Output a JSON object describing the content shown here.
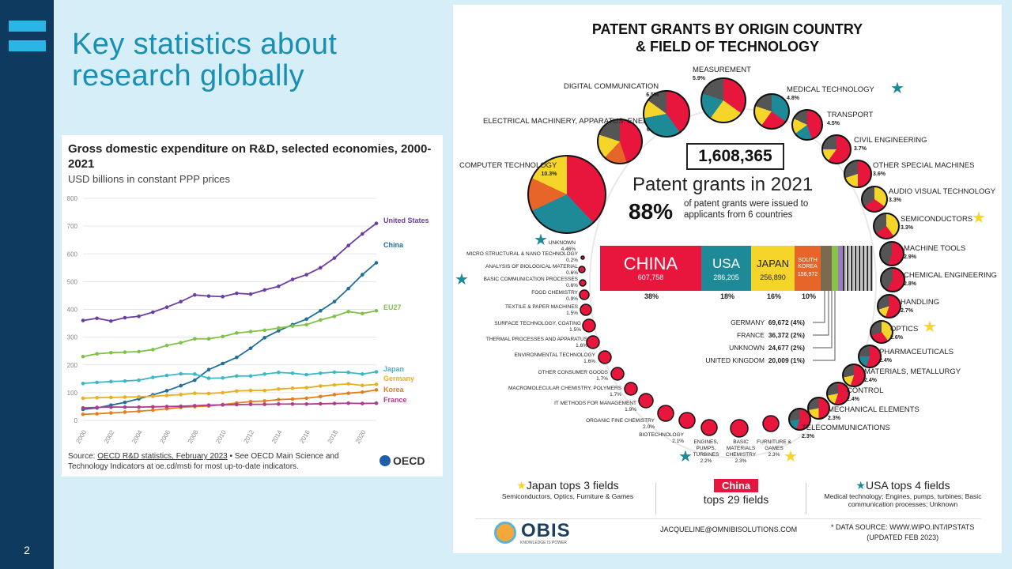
{
  "slide": {
    "title": "Key statistics about research globally",
    "page_number": "2"
  },
  "colors": {
    "sidebar": "#0e3a5f",
    "accent": "#29b6e6",
    "title": "#1a8fb2",
    "background": "#d6eef7"
  },
  "chart": {
    "title": "Gross domestic expenditure on R&D, selected economies, 2000-2021",
    "subtitle": "USD billions in constant PPP prices",
    "source_prefix": "Source: ",
    "source_link": "OECD R&D statistics, February 2023",
    "source_suffix": " • See OECD Main Science and Technology Indicators at oe.cd/msti for most up-to-date indicators.",
    "logo_text": "OECD"
  },
  "chart_data": {
    "type": "line",
    "title": "Gross domestic expenditure on R&D, selected economies, 2000-2021",
    "subtitle": "USD billions in constant PPP prices",
    "xlabel": "",
    "ylabel": "",
    "ylim": [
      0,
      800
    ],
    "yticks": [
      0,
      100,
      200,
      300,
      400,
      500,
      600,
      700,
      800
    ],
    "xticks": [
      "2000",
      "2002",
      "2004",
      "2006",
      "2008",
      "2010",
      "2012",
      "2014",
      "2016",
      "2018",
      "2020"
    ],
    "x": [
      2000,
      2001,
      2002,
      2003,
      2004,
      2005,
      2006,
      2007,
      2008,
      2009,
      2010,
      2011,
      2012,
      2013,
      2014,
      2015,
      2016,
      2017,
      2018,
      2019,
      2020,
      2021
    ],
    "grid": true,
    "series": [
      {
        "name": "United States",
        "color": "#6b3fa0",
        "values": [
          360,
          368,
          358,
          370,
          375,
          390,
          408,
          428,
          452,
          448,
          446,
          458,
          455,
          470,
          483,
          508,
          525,
          550,
          585,
          630,
          672,
          710
        ]
      },
      {
        "name": "China",
        "color": "#1e6f9a",
        "values": [
          40,
          45,
          55,
          65,
          78,
          92,
          107,
          125,
          145,
          183,
          205,
          227,
          260,
          298,
          323,
          345,
          365,
          395,
          428,
          475,
          525,
          568
        ]
      },
      {
        "name": "EU27",
        "color": "#7fc24a",
        "values": [
          230,
          240,
          244,
          246,
          248,
          255,
          270,
          280,
          294,
          294,
          302,
          315,
          320,
          325,
          333,
          340,
          345,
          362,
          375,
          392,
          385,
          395
        ]
      },
      {
        "name": "Japan",
        "color": "#3bb8c6",
        "values": [
          133,
          137,
          140,
          142,
          145,
          155,
          162,
          168,
          167,
          152,
          153,
          160,
          160,
          167,
          173,
          170,
          165,
          170,
          174,
          173,
          167,
          175
        ]
      },
      {
        "name": "Germany",
        "color": "#e8b020",
        "values": [
          80,
          82,
          83,
          84,
          85,
          87,
          90,
          93,
          98,
          97,
          100,
          106,
          108,
          108,
          113,
          116,
          118,
          124,
          128,
          132,
          126,
          130
        ]
      },
      {
        "name": "Korea",
        "color": "#e27f1e",
        "values": [
          22,
          24,
          27,
          30,
          33,
          37,
          42,
          47,
          50,
          52,
          57,
          63,
          68,
          70,
          75,
          77,
          80,
          86,
          93,
          98,
          102,
          110
        ]
      },
      {
        "name": "France",
        "color": "#b03a8f",
        "values": [
          45,
          47,
          48,
          48,
          48,
          49,
          50,
          51,
          53,
          55,
          56,
          57,
          58,
          58,
          59,
          59,
          59,
          60,
          61,
          62,
          61,
          62
        ]
      }
    ]
  },
  "infographic": {
    "title_line1": "PATENT GRANTS BY ORIGIN COUNTRY",
    "title_line2": "& FIELD OF TECHNOLOGY",
    "total": "1,608,365",
    "headline": "Patent grants in 2021",
    "pct": "88%",
    "pct_desc": "of patent grants were issued to applicants from 6 countries",
    "bar": [
      {
        "name": "CHINA",
        "value": "607,758",
        "pct": "38%",
        "color": "#e8163c",
        "share": 38
      },
      {
        "name": "USA",
        "value": "286,205",
        "pct": "18%",
        "color": "#1e8a98",
        "share": 18
      },
      {
        "name": "JAPAN",
        "value": "256,890",
        "pct": "16%",
        "color": "#f5d52a",
        "share": 16
      },
      {
        "name": "SOUTH KOREA",
        "value": "156,972",
        "pct": "10%",
        "color": "#e8652a",
        "share": 10
      }
    ],
    "others": [
      {
        "label": "GERMANY",
        "value": "69,672 (4%)"
      },
      {
        "label": "FRANCE",
        "value": "36,372 (2%)"
      },
      {
        "label": "UNKNOWN",
        "value": "24,677 (2%)"
      },
      {
        "label": "UNITED KINGDOM",
        "value": "20,009 (1%)"
      }
    ],
    "categories": [
      {
        "name": "MEASUREMENT",
        "pct": "5.9%"
      },
      {
        "name": "DIGITAL COMMUNICATION",
        "pct": "6.5%"
      },
      {
        "name": "MEDICAL TECHNOLOGY",
        "pct": "4.8%"
      },
      {
        "name": "TRANSPORT",
        "pct": "4.5%"
      },
      {
        "name": "ELECTRICAL MACHINERY, APPARATUS, ENERGY",
        "pct": "6.6%"
      },
      {
        "name": "CIVIL ENGINEERING",
        "pct": "3.7%"
      },
      {
        "name": "OTHER SPECIAL MACHINES",
        "pct": "3.6%"
      },
      {
        "name": "COMPUTER TECHNOLOGY",
        "pct": "10.3%"
      },
      {
        "name": "AUDIO VISUAL TECHNOLOGY",
        "pct": "3.3%"
      },
      {
        "name": "SEMICONDUCTORS",
        "pct": "3.3%"
      },
      {
        "name": "MACHINE TOOLS",
        "pct": "2.9%"
      },
      {
        "name": "CHEMICAL ENGINEERING",
        "pct": "2.8%"
      },
      {
        "name": "HANDLING",
        "pct": "2.7%"
      },
      {
        "name": "OPTICS",
        "pct": "2.6%"
      },
      {
        "name": "PHARMACEUTICALS",
        "pct": "2.4%"
      },
      {
        "name": "MATERIALS, METALLURGY",
        "pct": "2.4%"
      },
      {
        "name": "CONTROL",
        "pct": "2.4%"
      },
      {
        "name": "MECHANICAL ELEMENTS",
        "pct": "2.3%"
      },
      {
        "name": "TELECOMMUNICATIONS",
        "pct": "2.3%"
      }
    ],
    "small_categories": [
      {
        "name": "UNKNOWN",
        "pct": "4.46%"
      },
      {
        "name": "MICRO STRUCTURAL & NANO TECHNOLOGY",
        "pct": "0.2%"
      },
      {
        "name": "ANALYSIS OF BIOLOGICAL MATERIAL",
        "pct": "0.6%"
      },
      {
        "name": "BASIC COMMUNICATION PROCESSES",
        "pct": "0.6%"
      },
      {
        "name": "FOOD CHEMISTRY",
        "pct": "0.9%"
      },
      {
        "name": "TEXTILE & PAPER MACHINES",
        "pct": "1.5%"
      },
      {
        "name": "SURFACE TECHNOLOGY, COATING",
        "pct": "1.5%"
      },
      {
        "name": "THERMAL PROCESSES AND APPARATUS",
        "pct": "1.6%"
      },
      {
        "name": "ENVIRONMENTAL TECHNOLOGY",
        "pct": "1.6%"
      },
      {
        "name": "OTHER CONSUMER GOODS",
        "pct": "1.7%"
      },
      {
        "name": "MACROMOLECULAR CHEMISTRY, POLYMERS",
        "pct": "1.7%"
      },
      {
        "name": "IT METHODS FOR MANAGEMENT",
        "pct": "1.9%"
      },
      {
        "name": "ORGANIC FINE CHEMISTRY",
        "pct": "2.0%"
      },
      {
        "name": "BIOTECHNOLOGY",
        "pct": "2.1%"
      },
      {
        "name": "ENGINES, PUMPS, TURBINES",
        "pct": "2.2%"
      },
      {
        "name": "BASIC MATERIALS CHEMISTRY",
        "pct": "2.3%"
      },
      {
        "name": "FURNITURE & GAMES",
        "pct": "2.3%"
      }
    ],
    "footer": {
      "japan_head": "Japan tops 3 fields",
      "japan_sub": "Semiconductors, Optics, Furniture & Games",
      "china_box": "China",
      "china_sub": "tops 29 fields",
      "usa_head": "USA tops 4 fields",
      "usa_sub": "Medical technology; Engines, pumps, turbines; Basic communication processes; Unknown",
      "brand": "OBIS",
      "tagline": "KNOWLEDGE IS POWER",
      "email": "JACQUELINE@OMNIBISOLUTIONS.COM",
      "source_line1": "* DATA SOURCE: WWW.WIPO.INT/IPSTATS",
      "source_line2": "(UPDATED FEB 2023)"
    }
  }
}
